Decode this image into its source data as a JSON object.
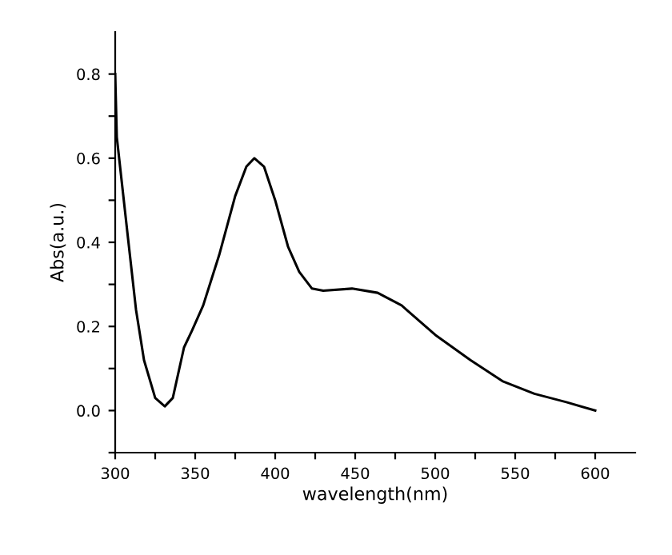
{
  "chart_data": {
    "type": "line",
    "xlabel": "wavelength(nm)",
    "ylabel": "Abs(a.u.)",
    "xlim": [
      300,
      625
    ],
    "ylim": [
      -0.1,
      0.9
    ],
    "xticks": [
      300,
      {
        "value": 325,
        "label": null
      },
      350,
      {
        "value": 375,
        "label": null
      },
      400,
      {
        "value": 425,
        "label": null
      },
      450,
      {
        "value": 475,
        "label": null
      },
      500,
      {
        "value": 525,
        "label": null
      },
      550,
      {
        "value": 575,
        "label": null
      },
      600
    ],
    "yticks": [
      {
        "value": -0.1,
        "label": null
      },
      {
        "value": 0,
        "label": "0.0"
      },
      {
        "value": 0.1,
        "label": null
      },
      0.2,
      {
        "value": 0.3,
        "label": null
      },
      0.4,
      {
        "value": 0.5,
        "label": null
      },
      0.6,
      {
        "value": 0.7,
        "label": null
      },
      0.8
    ],
    "marker": "none",
    "line_style": "solid",
    "series": [
      {
        "color": "#000000",
        "x": [
          300,
          301,
          308,
          313,
          318,
          325,
          331,
          336,
          343,
          348,
          355,
          365,
          375,
          382,
          387,
          393,
          400,
          408,
          415,
          423,
          430,
          448,
          464,
          479,
          500,
          522,
          542,
          562,
          582,
          600
        ],
        "values": [
          0.8,
          0.65,
          0.41,
          0.24,
          0.12,
          0.03,
          0.01,
          0.03,
          0.15,
          0.19,
          0.25,
          0.37,
          0.51,
          0.58,
          0.6,
          0.58,
          0.5,
          0.39,
          0.33,
          0.29,
          0.285,
          0.29,
          0.28,
          0.25,
          0.18,
          0.12,
          0.07,
          0.04,
          0.02,
          0.0
        ]
      }
    ]
  }
}
